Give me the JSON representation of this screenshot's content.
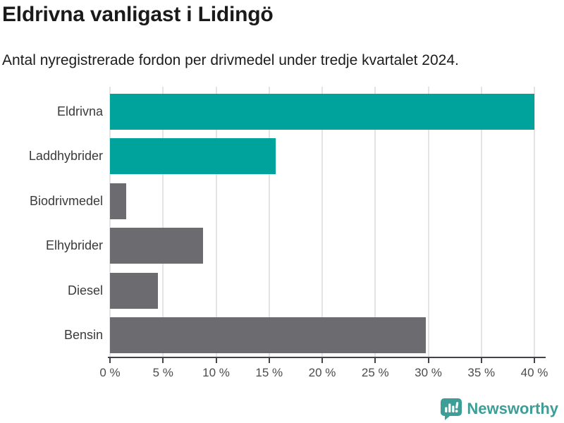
{
  "header": {
    "title": "Eldrivna vanligast i Lidingö",
    "subtitle": "Antal nyregistrerade fordon per drivmedel under tredje kvartalet 2024."
  },
  "chart_data": {
    "type": "bar",
    "orientation": "horizontal",
    "title": "Eldrivna vanligast i Lidingö",
    "subtitle": "Antal nyregistrerade fordon per drivmedel under tredje kvartalet 2024.",
    "categories": [
      "Eldrivna",
      "Laddhybrider",
      "Biodrivmedel",
      "Elhybrider",
      "Diesel",
      "Bensin"
    ],
    "values": [
      40.0,
      15.6,
      1.5,
      8.8,
      4.5,
      29.8
    ],
    "unit": "%",
    "bar_colors": [
      "#00a39c",
      "#00a39c",
      "#6b6b70",
      "#6b6b70",
      "#6b6b70",
      "#6b6b70"
    ],
    "xlabel": "",
    "ylabel": "",
    "xlim": [
      0,
      40
    ],
    "x_ticks": [
      0,
      5,
      10,
      15,
      20,
      25,
      30,
      35,
      40
    ],
    "x_tick_labels": [
      "0 %",
      "5 %",
      "10 %",
      "15 %",
      "20 %",
      "25 %",
      "30 %",
      "35 %",
      "40 %"
    ],
    "grid": true,
    "legend": false
  },
  "footer": {
    "brand": "Newsworthy"
  },
  "colors": {
    "accent_teal": "#00a39c",
    "neutral_gray": "#6b6b70",
    "brand_teal": "#3d9e97"
  }
}
